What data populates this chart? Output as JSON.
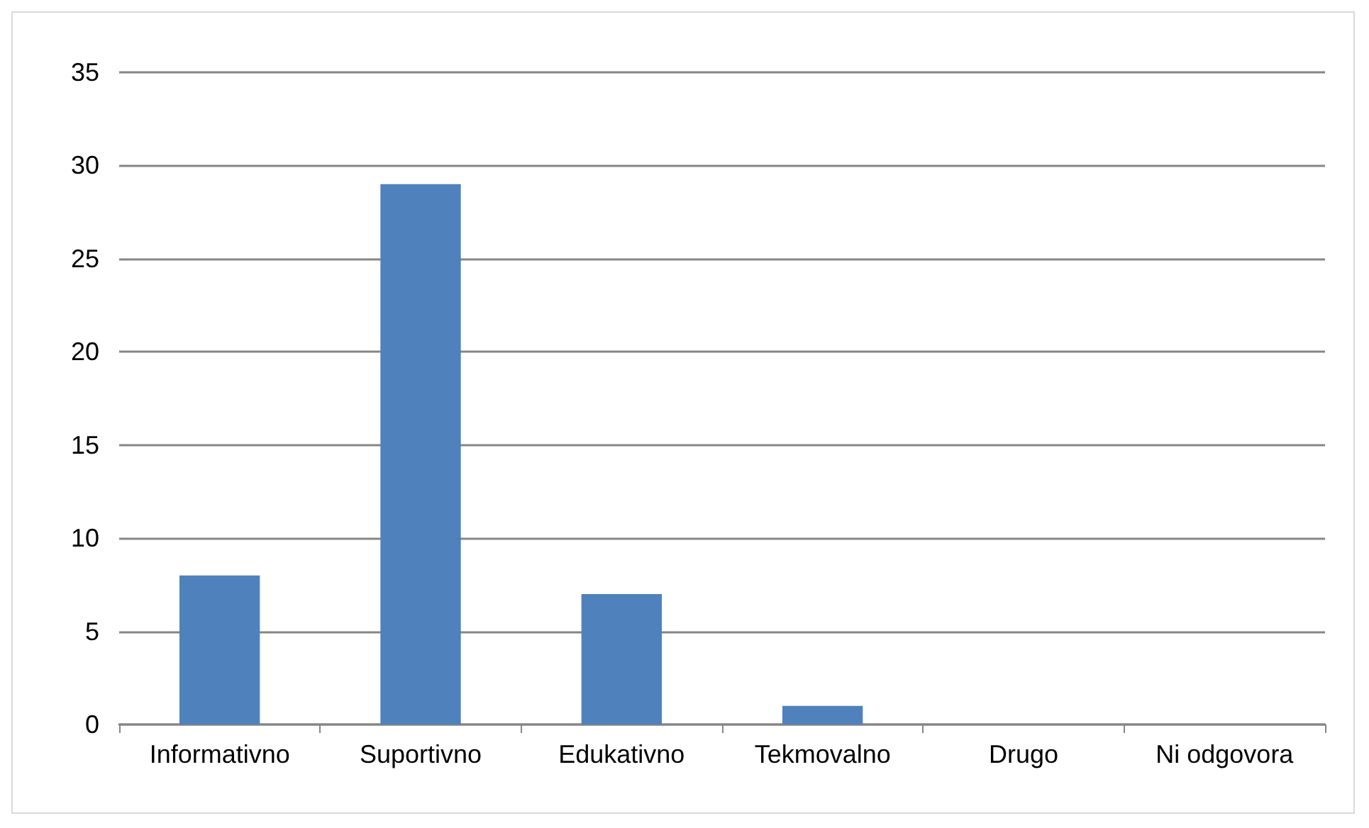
{
  "chart_data": {
    "type": "bar",
    "categories": [
      "Informativno",
      "Suportivno",
      "Edukativno",
      "Tekmovalno",
      "Drugo",
      "Ni odgovora"
    ],
    "values": [
      8,
      29,
      7,
      1,
      0,
      0
    ],
    "color": "#4f81bd",
    "ylim": [
      0,
      35
    ],
    "yticks": [
      0,
      5,
      10,
      15,
      20,
      25,
      30,
      35
    ],
    "grid": "y"
  }
}
